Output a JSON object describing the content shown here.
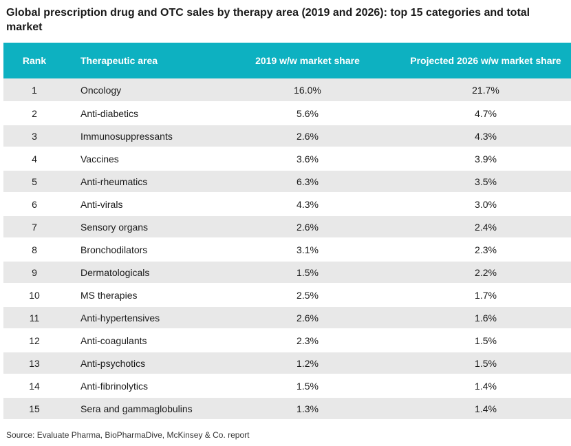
{
  "title": "Global prescription drug and OTC sales by therapy area (2019 and 2026): top 15 categories and total market",
  "colors": {
    "header_bg": "#0db1c1",
    "header_text": "#ffffff",
    "row_shade": "#e8e8e8"
  },
  "source": "Source: Evaluate Pharma, BioPharmaDive, McKinsey & Co. report",
  "chart_data": {
    "type": "table",
    "title": "Global prescription drug and OTC sales by therapy area (2019 and 2026): top 15 categories and total market",
    "columns": [
      "Rank",
      "Therapeutic area",
      "2019 w/w market share",
      "Projected 2026 w/w market share"
    ],
    "rows": [
      [
        "1",
        "Oncology",
        "16.0%",
        "21.7%"
      ],
      [
        "2",
        "Anti-diabetics",
        "5.6%",
        "4.7%"
      ],
      [
        "3",
        "Immunosuppressants",
        "2.6%",
        "4.3%"
      ],
      [
        "4",
        "Vaccines",
        "3.6%",
        "3.9%"
      ],
      [
        "5",
        "Anti-rheumatics",
        "6.3%",
        "3.5%"
      ],
      [
        "6",
        "Anti-virals",
        "4.3%",
        "3.0%"
      ],
      [
        "7",
        "Sensory organs",
        "2.6%",
        "2.4%"
      ],
      [
        "8",
        "Bronchodilators",
        "3.1%",
        "2.3%"
      ],
      [
        "9",
        "Dermatologicals",
        "1.5%",
        "2.2%"
      ],
      [
        "10",
        "MS therapies",
        "2.5%",
        "1.7%"
      ],
      [
        "11",
        "Anti-hypertensives",
        "2.6%",
        "1.6%"
      ],
      [
        "12",
        "Anti-coagulants",
        "2.3%",
        "1.5%"
      ],
      [
        "13",
        "Anti-psychotics",
        "1.2%",
        "1.5%"
      ],
      [
        "14",
        "Anti-fibrinolytics",
        "1.5%",
        "1.4%"
      ],
      [
        "15",
        "Sera and gammaglobulins",
        "1.3%",
        "1.4%"
      ]
    ]
  }
}
